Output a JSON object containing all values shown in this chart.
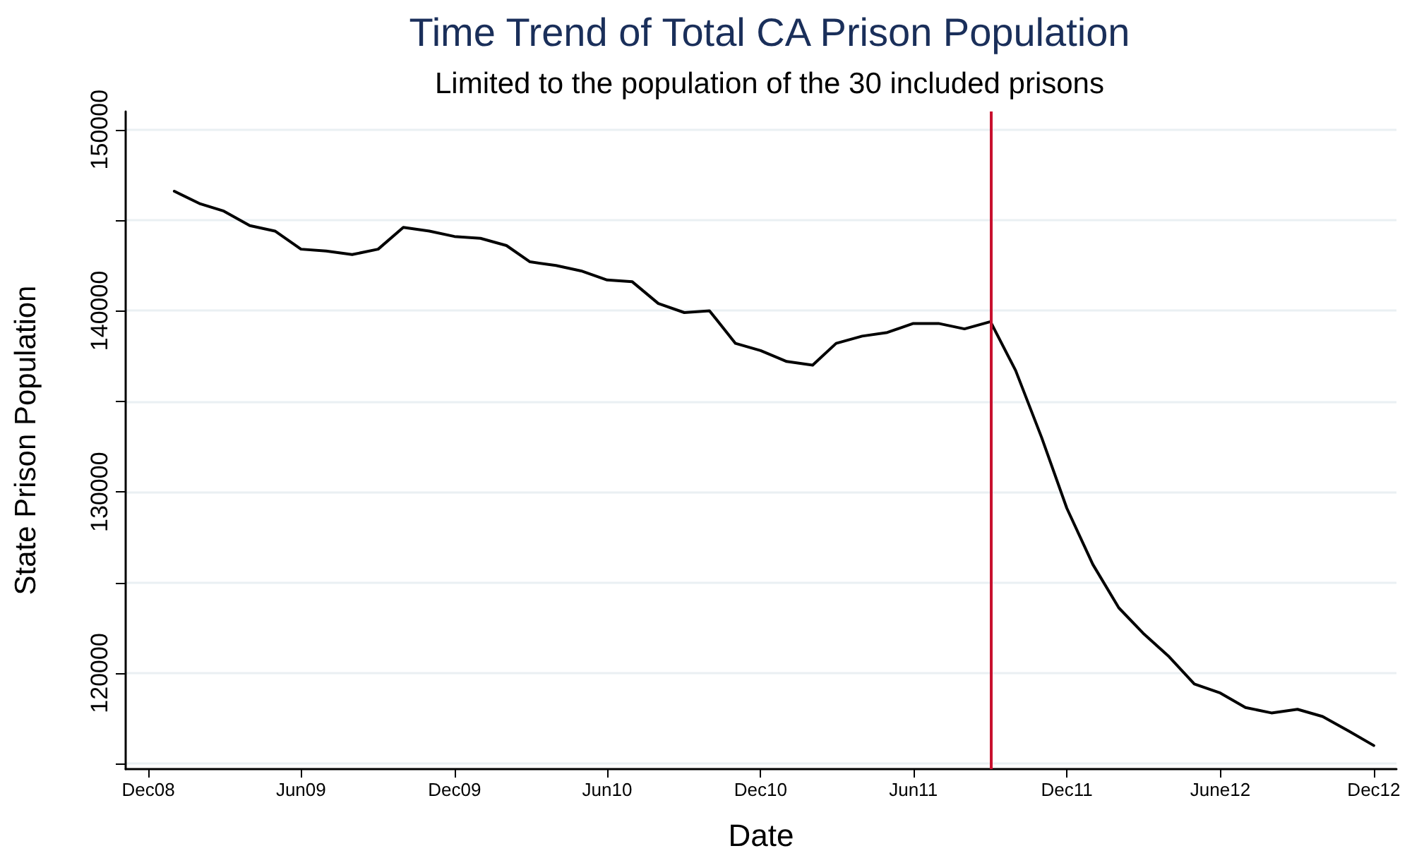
{
  "chart_data": {
    "type": "line",
    "title": "Time Trend of Total CA Prison Population",
    "subtitle": "Limited to the population of the 30 included prisons",
    "xlabel": "Date",
    "ylabel": "State Prison Population",
    "x": [
      "2009-01",
      "2009-02",
      "2009-03",
      "2009-04",
      "2009-05",
      "2009-06",
      "2009-07",
      "2009-08",
      "2009-09",
      "2009-10",
      "2009-11",
      "2009-12",
      "2010-01",
      "2010-02",
      "2010-03",
      "2010-04",
      "2010-05",
      "2010-06",
      "2010-07",
      "2010-08",
      "2010-09",
      "2010-10",
      "2010-11",
      "2010-12",
      "2011-01",
      "2011-02",
      "2011-03",
      "2011-04",
      "2011-05",
      "2011-06",
      "2011-07",
      "2011-08",
      "2011-09",
      "2011-10",
      "2011-11",
      "2011-12",
      "2012-01",
      "2012-02",
      "2012-03",
      "2012-04",
      "2012-05",
      "2012-06",
      "2012-07",
      "2012-08",
      "2012-09",
      "2012-10",
      "2012-11",
      "2012-12"
    ],
    "series": [
      {
        "color": "#000000",
        "values": [
          146600,
          145900,
          145500,
          144700,
          144400,
          143400,
          143300,
          143100,
          143400,
          144600,
          144400,
          144100,
          144000,
          143600,
          142700,
          142500,
          142200,
          141700,
          141600,
          140400,
          139900,
          140000,
          138200,
          137800,
          137200,
          137000,
          138200,
          138600,
          138800,
          139300,
          139300,
          139000,
          139400,
          136700,
          133000,
          129100,
          126000,
          123600,
          122200,
          120900,
          119400,
          118900,
          118100,
          117800,
          118000,
          117600,
          116800,
          116000
        ]
      }
    ],
    "xlim": [
      "2008-11-04",
      "2012-12-28"
    ],
    "xticks": [
      {
        "value": "2008-12",
        "label": "Dec08"
      },
      {
        "value": "2009-06",
        "label": "Jun09"
      },
      {
        "value": "2009-12",
        "label": "Dec09"
      },
      {
        "value": "2010-06",
        "label": "Jun10"
      },
      {
        "value": "2010-12",
        "label": "Dec10"
      },
      {
        "value": "2011-06",
        "label": "Jun11"
      },
      {
        "value": "2011-12",
        "label": "Dec11"
      },
      {
        "value": "2012-06",
        "label": "June12"
      },
      {
        "value": "2012-12",
        "label": "Dec12"
      }
    ],
    "ylim": [
      114700,
      151000
    ],
    "yticks": [
      {
        "value": 115000,
        "label": null
      },
      120000,
      {
        "value": 125000,
        "label": null
      },
      130000,
      {
        "value": 135000,
        "label": null
      },
      140000,
      {
        "value": 145000,
        "label": null
      },
      150000
    ],
    "ref_lines": [
      {
        "axis": "x",
        "value": "2011-09",
        "color": "#c8102e"
      }
    ],
    "grid": "y",
    "marker": "none",
    "line_style": "solid"
  }
}
